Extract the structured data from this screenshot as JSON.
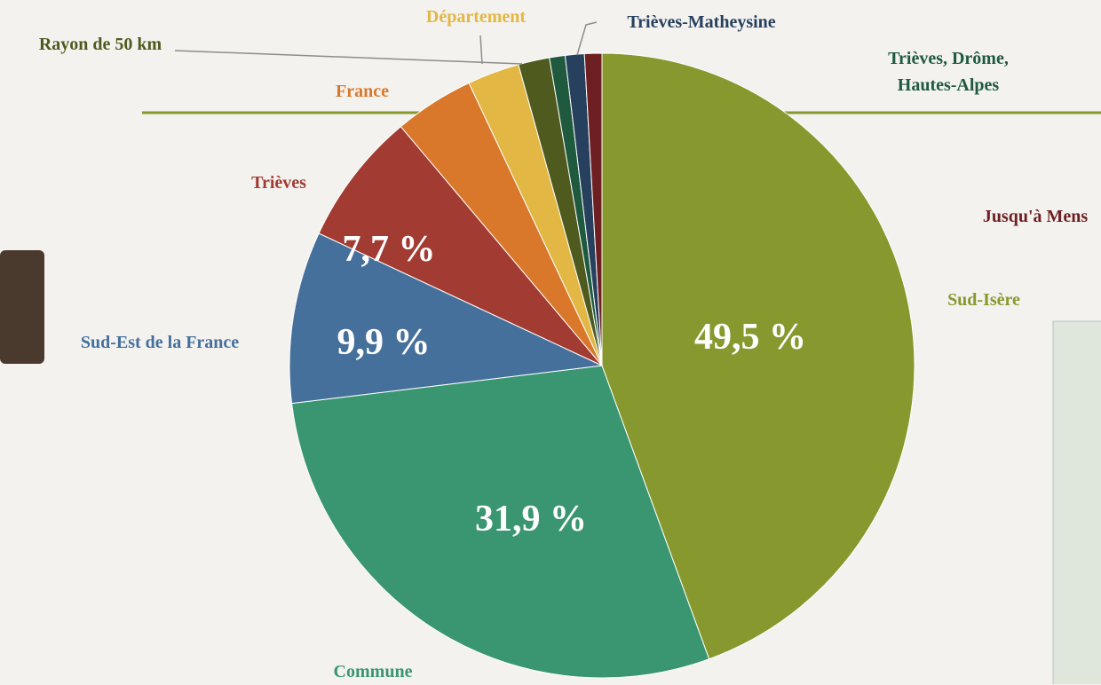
{
  "chart_data": {
    "type": "pie",
    "categories": [
      "Sud-Isère",
      "Commune",
      "Sud-Est de la France",
      "Trièves",
      "France",
      "Département",
      "Rayon de 50 km",
      "Trièves, Drôme, Hautes-Alpes",
      "Trièves-Matheysine",
      "Jusqu'à Mens"
    ],
    "values": [
      49.5,
      31.9,
      9.9,
      7.7,
      4.6,
      3.0,
      1.8,
      0.9,
      1.1,
      1.0
    ],
    "value_labels": [
      "49,5 %",
      "31,9 %",
      "9,9 %",
      "7,7 %",
      null,
      null,
      null,
      null,
      null,
      null
    ],
    "colors": [
      "#87992e",
      "#3a9670",
      "#45709c",
      "#a23b32",
      "#d9782b",
      "#e2b744",
      "#4f5a1e",
      "#1f5a3f",
      "#27405e",
      "#6e1f22"
    ]
  }
}
